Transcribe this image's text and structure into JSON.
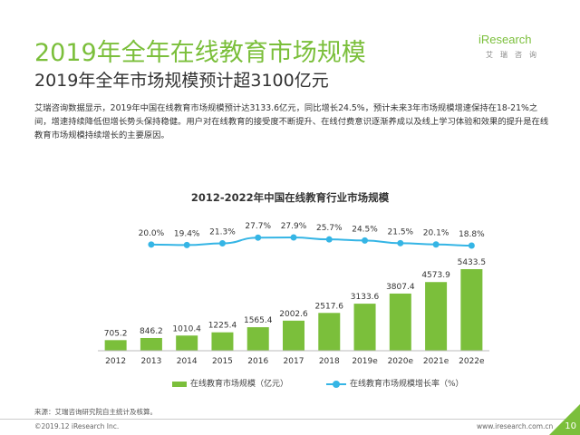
{
  "header": {
    "title": "2019年全年在线教育市场规模",
    "subtitle": "2019年全年市场规模预计超3100亿元"
  },
  "logo": {
    "text": "iResearch",
    "subtext": "艾瑞咨询"
  },
  "description": "艾瑞咨询数据显示，2019年中国在线教育市场规模预计达3133.6亿元，同比增长24.5%，预计未来3年市场规模增速保持在18-21%之间，增速持续降低但增长势头保持稳健。用户对在线教育的接受度不断提升、在线付费意识逐渐养成以及线上学习体验和效果的提升是在线教育市场规模持续增长的主要原因。",
  "chart_data": {
    "type": "bar",
    "title": "2012-2022年中国在线教育行业市场规模",
    "categories": [
      "2012",
      "2013",
      "2014",
      "2015",
      "2016",
      "2017",
      "2018",
      "2019e",
      "2020e",
      "2021e",
      "2022e"
    ],
    "series": [
      {
        "name": "在线教育市场规模（亿元）",
        "type": "bar",
        "color": "#7bbf3b",
        "values": [
          705.2,
          846.2,
          1010.4,
          1225.4,
          1565.4,
          2002.6,
          2517.6,
          3133.6,
          3807.4,
          4573.9,
          5433.5
        ],
        "labels": [
          "705.2",
          "846.2",
          "1010.4",
          "1225.4",
          "1565.4",
          "2002.6",
          "2517.6",
          "3133.6",
          "3807.4",
          "4573.9",
          "5433.5"
        ]
      },
      {
        "name": "在线教育市场规模增长率（%）",
        "type": "line",
        "color": "#35b5e5",
        "values": [
          null,
          20.0,
          19.4,
          21.3,
          27.7,
          27.9,
          25.7,
          24.5,
          21.5,
          20.1,
          18.8
        ],
        "labels": [
          "",
          "20.0%",
          "19.4%",
          "21.3%",
          "27.7%",
          "27.9%",
          "25.7%",
          "24.5%",
          "21.5%",
          "20.1%",
          "18.8%"
        ]
      }
    ],
    "legend_position": "bottom",
    "grid": false
  },
  "footer": {
    "source": "来源：艾瑞咨询研究院自主统计及核算。",
    "copyright": "©2019.12 iResearch Inc.",
    "website": "www.iresearch.com.cn",
    "page": "10"
  }
}
